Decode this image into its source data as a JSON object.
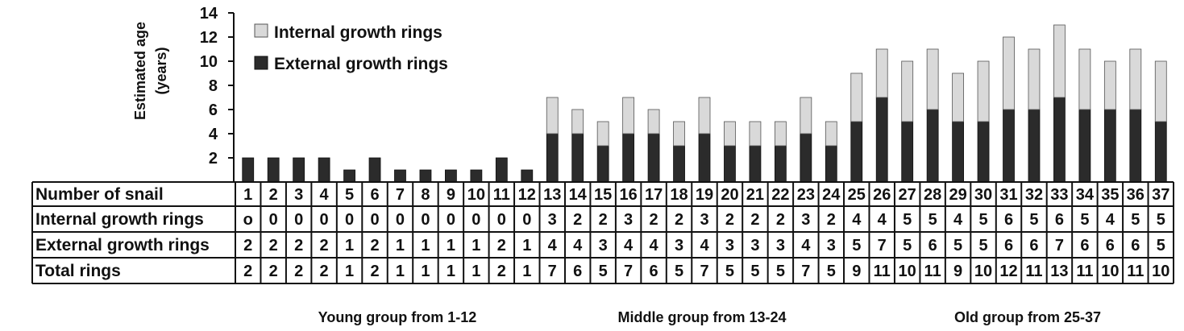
{
  "chart_data": {
    "type": "bar",
    "stacked": true,
    "ylabel": [
      "Estimated age",
      "(years)"
    ],
    "ylim": [
      0,
      14
    ],
    "yticks": [
      2,
      4,
      6,
      8,
      10,
      12,
      14
    ],
    "categories": [
      "1",
      "2",
      "3",
      "4",
      "5",
      "6",
      "7",
      "8",
      "9",
      "10",
      "11",
      "12",
      "13",
      "14",
      "15",
      "16",
      "17",
      "18",
      "19",
      "20",
      "21",
      "22",
      "23",
      "24",
      "25",
      "26",
      "27",
      "28",
      "29",
      "30",
      "31",
      "32",
      "33",
      "34",
      "35",
      "36",
      "37"
    ],
    "series": [
      {
        "name": "External growth rings",
        "color": "#2b2b2b",
        "values": [
          2,
          2,
          2,
          2,
          1,
          2,
          1,
          1,
          1,
          1,
          2,
          1,
          4,
          4,
          3,
          4,
          4,
          3,
          4,
          3,
          3,
          3,
          4,
          3,
          5,
          7,
          5,
          6,
          5,
          5,
          6,
          6,
          7,
          6,
          6,
          6,
          5
        ]
      },
      {
        "name": "Internal growth rings",
        "color": "#d9d9d9",
        "values": [
          0,
          0,
          0,
          0,
          0,
          0,
          0,
          0,
          0,
          0,
          0,
          0,
          3,
          2,
          2,
          3,
          2,
          2,
          3,
          2,
          2,
          2,
          3,
          2,
          4,
          4,
          5,
          5,
          4,
          5,
          6,
          5,
          6,
          5,
          4,
          5,
          5
        ]
      }
    ],
    "legend_position": "top-left",
    "table": {
      "rows": [
        {
          "label": "Number of snail",
          "values": [
            "1",
            "2",
            "3",
            "4",
            "5",
            "6",
            "7",
            "8",
            "9",
            "10",
            "11",
            "12",
            "13",
            "14",
            "15",
            "16",
            "17",
            "18",
            "19",
            "20",
            "21",
            "22",
            "23",
            "24",
            "25",
            "26",
            "27",
            "28",
            "29",
            "30",
            "31",
            "32",
            "33",
            "34",
            "35",
            "36",
            "37"
          ]
        },
        {
          "label": "Internal growth rings",
          "values": [
            "o",
            "0",
            "0",
            "0",
            "0",
            "0",
            "0",
            "0",
            "0",
            "0",
            "0",
            "0",
            "3",
            "2",
            "2",
            "3",
            "2",
            "2",
            "3",
            "2",
            "2",
            "2",
            "3",
            "2",
            "4",
            "4",
            "5",
            "5",
            "4",
            "5",
            "6",
            "5",
            "6",
            "5",
            "4",
            "5",
            "5"
          ]
        },
        {
          "label": "External growth rings",
          "values": [
            "2",
            "2",
            "2",
            "2",
            "1",
            "2",
            "1",
            "1",
            "1",
            "1",
            "2",
            "1",
            "4",
            "4",
            "3",
            "4",
            "4",
            "3",
            "4",
            "3",
            "3",
            "3",
            "4",
            "3",
            "5",
            "7",
            "5",
            "6",
            "5",
            "5",
            "6",
            "6",
            "7",
            "6",
            "6",
            "6",
            "5"
          ]
        },
        {
          "label": "Total rings",
          "values": [
            "2",
            "2",
            "2",
            "2",
            "1",
            "2",
            "1",
            "1",
            "1",
            "1",
            "2",
            "1",
            "7",
            "6",
            "5",
            "7",
            "6",
            "5",
            "7",
            "5",
            "5",
            "5",
            "7",
            "5",
            "9",
            "11",
            "10",
            "11",
            "9",
            "10",
            "12",
            "11",
            "13",
            "11",
            "10",
            "11",
            "10"
          ]
        }
      ]
    },
    "groups": [
      "Young group from 1-12",
      "Middle group from 13-24",
      "Old group from 25-37"
    ]
  }
}
